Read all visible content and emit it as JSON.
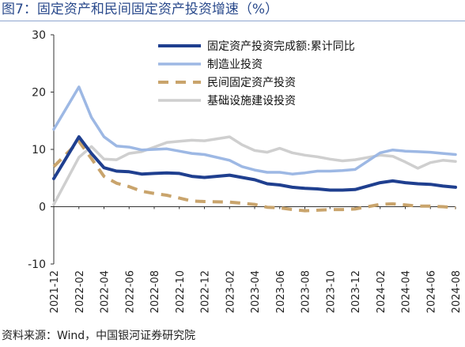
{
  "title": "图7：固定资产和民间固定资产投资增速（%）",
  "source": "资料来源：Wind，中国银河证券研究院",
  "chart_data": {
    "type": "line",
    "title": "图7：固定资产和民间固定资产投资增速（%）",
    "xlabel": "",
    "ylabel": "",
    "ylim": [
      -10,
      30
    ],
    "yticks": [
      -10,
      0,
      10,
      20,
      30
    ],
    "grid": false,
    "legend_position": "top-right",
    "x": [
      "2021-12",
      "2022-01",
      "2022-02",
      "2022-03",
      "2022-04",
      "2022-05",
      "2022-06",
      "2022-07",
      "2022-08",
      "2022-09",
      "2022-10",
      "2022-11",
      "2022-12",
      "2023-01",
      "2023-02",
      "2023-03",
      "2023-04",
      "2023-05",
      "2023-06",
      "2023-07",
      "2023-08",
      "2023-09",
      "2023-10",
      "2023-11",
      "2023-12",
      "2024-01",
      "2024-02",
      "2024-03",
      "2024-04",
      "2024-05",
      "2024-06",
      "2024-07",
      "2024-08"
    ],
    "x_tick_labels": [
      "2021-12",
      "2022-02",
      "2022-04",
      "2022-06",
      "2022-08",
      "2022-10",
      "2022-12",
      "2023-02",
      "2023-04",
      "2023-06",
      "2023-08",
      "2023-10",
      "2023-12",
      "2024-02",
      "2024-04",
      "2024-06",
      "2024-08"
    ],
    "series": [
      {
        "name": "固定资产投资完成额:累计同比",
        "color": "#1f3f8f",
        "style": "solid",
        "values": [
          4.9,
          null,
          12.2,
          9.3,
          6.8,
          6.2,
          6.1,
          5.7,
          5.8,
          5.9,
          5.8,
          5.3,
          5.1,
          null,
          5.5,
          5.1,
          4.7,
          4.0,
          3.8,
          3.4,
          3.2,
          3.1,
          2.9,
          2.9,
          3.0,
          null,
          4.2,
          4.5,
          4.2,
          4.0,
          3.9,
          3.6,
          3.4
        ]
      },
      {
        "name": "制造业投资",
        "color": "#9db8e4",
        "style": "solid",
        "values": [
          13.5,
          null,
          20.9,
          15.6,
          12.2,
          10.6,
          10.4,
          9.9,
          10.0,
          10.1,
          9.7,
          9.3,
          9.1,
          null,
          8.1,
          7.0,
          6.4,
          6.0,
          6.0,
          5.7,
          5.9,
          6.2,
          6.2,
          6.3,
          6.5,
          null,
          9.4,
          9.9,
          9.7,
          9.6,
          9.5,
          9.3,
          9.1
        ]
      },
      {
        "name": "民间固定资产投资",
        "color": "#c9a46c",
        "style": "dashed",
        "values": [
          7.0,
          null,
          11.4,
          8.4,
          5.3,
          4.1,
          3.5,
          2.7,
          2.3,
          2.0,
          1.5,
          1.0,
          0.9,
          null,
          0.8,
          0.6,
          0.4,
          -0.1,
          -0.2,
          -0.5,
          -0.7,
          -0.6,
          -0.5,
          -0.5,
          -0.4,
          null,
          0.4,
          0.5,
          0.3,
          0.1,
          0.1,
          0.0,
          -0.2
        ]
      },
      {
        "name": "基础设施建设投资",
        "color": "#cfcfcf",
        "style": "solid",
        "values": [
          0.4,
          null,
          8.6,
          10.5,
          8.3,
          8.2,
          9.3,
          9.6,
          10.4,
          11.2,
          11.4,
          11.6,
          11.5,
          null,
          12.2,
          10.8,
          9.8,
          9.5,
          10.2,
          9.4,
          9.0,
          8.7,
          8.3,
          8.0,
          8.2,
          null,
          9.0,
          8.8,
          7.8,
          6.7,
          7.7,
          8.1,
          7.9
        ]
      }
    ]
  }
}
